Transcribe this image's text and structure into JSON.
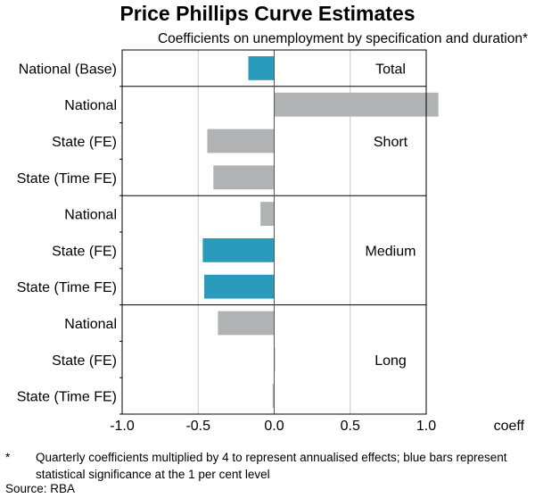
{
  "colors": {
    "significant": "#2a9bbd",
    "not_significant": "#b0b2b4",
    "grid": "#c8c8c8",
    "frame": "#000000"
  },
  "chart_data": {
    "type": "bar",
    "orientation": "horizontal",
    "title": "Price Phillips Curve Estimates",
    "subtitle": "Coefficients on unemployment by specification and duration*",
    "xlabel": "coeff",
    "xlim": [
      -1.0,
      1.0
    ],
    "xticks": [
      "-1.0",
      "-0.5",
      "0.0",
      "0.5",
      "1.0"
    ],
    "grid": true,
    "groups": [
      {
        "name": "Total",
        "rows": [
          {
            "label": "National (Base)",
            "value": -0.17,
            "significant": true
          }
        ]
      },
      {
        "name": "Short",
        "rows": [
          {
            "label": "National",
            "value": 1.08,
            "significant": false
          },
          {
            "label": "State (FE)",
            "value": -0.44,
            "significant": false
          },
          {
            "label": "State (Time FE)",
            "value": -0.4,
            "significant": false
          }
        ]
      },
      {
        "name": "Medium",
        "rows": [
          {
            "label": "National",
            "value": -0.09,
            "significant": false
          },
          {
            "label": "State (FE)",
            "value": -0.47,
            "significant": true
          },
          {
            "label": "State (Time FE)",
            "value": -0.46,
            "significant": true
          }
        ]
      },
      {
        "name": "Long",
        "rows": [
          {
            "label": "National",
            "value": -0.37,
            "significant": false
          },
          {
            "label": "State (FE)",
            "value": 0.0,
            "significant": false
          },
          {
            "label": "State (Time FE)",
            "value": -0.01,
            "significant": false
          }
        ]
      }
    ]
  },
  "footnote": {
    "marker": "*",
    "text": "Quarterly coefficients multiplied by 4 to represent annualised effects; blue bars represent statistical significance at the 1 per cent level"
  },
  "source": "Source:  RBA"
}
